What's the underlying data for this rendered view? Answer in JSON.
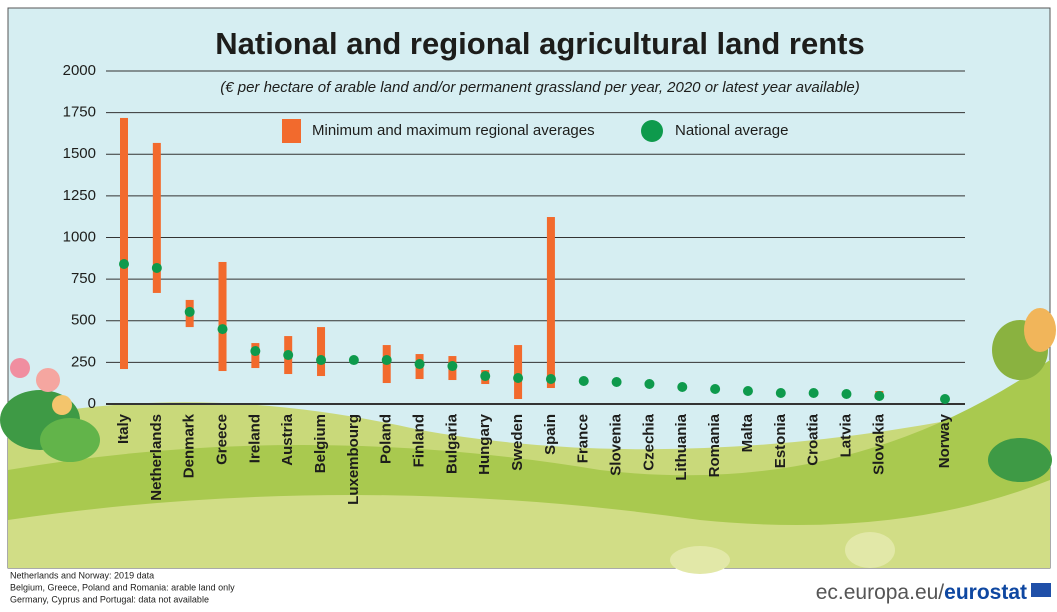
{
  "chart_data": {
    "type": "range",
    "title": "National and regional agricultural land rents",
    "subtitle": "(€ per hectare of arable land and/or permanent grassland per year, 2020 or latest year available)",
    "categories": [
      "Italy",
      "Netherlands",
      "Denmark",
      "Greece",
      "Ireland",
      "Austria",
      "Belgium",
      "Luxembourg",
      "Poland",
      "Finland",
      "Bulgaria",
      "Hungary",
      "Sweden",
      "Spain",
      "France",
      "Slovenia",
      "Czechia",
      "Lithuania",
      "Romania",
      "Malta",
      "Estonia",
      "Croatia",
      "Latvia",
      "Slovakia",
      null,
      "Norway"
    ],
    "series": [
      {
        "name": "Minimum and maximum regional averages",
        "color": "#f26a2d",
        "low": [
          210,
          667,
          462,
          198,
          216,
          180,
          168,
          null,
          126,
          150,
          144,
          120,
          30,
          96,
          null,
          null,
          null,
          null,
          null,
          null,
          null,
          null,
          null,
          30,
          null,
          null
        ],
        "high": [
          1718,
          1568,
          625,
          853,
          366,
          408,
          462,
          null,
          354,
          300,
          288,
          204,
          354,
          1123,
          null,
          null,
          null,
          null,
          null,
          null,
          null,
          null,
          null,
          78,
          null,
          null
        ]
      },
      {
        "name": "National average",
        "color": "#0e9a4c",
        "values": [
          841,
          817,
          553,
          450,
          318,
          294,
          264,
          264,
          264,
          240,
          228,
          168,
          156,
          150,
          138,
          132,
          120,
          102,
          90,
          78,
          66,
          66,
          60,
          48,
          null,
          30
        ]
      }
    ],
    "ylim": [
      0,
      2000
    ],
    "yticks": [
      0,
      250,
      500,
      750,
      1000,
      1250,
      1500,
      1750,
      2000
    ],
    "grid": true
  },
  "footer": {
    "notes": [
      "Netherlands and Norway: 2019 data",
      "Belgium, Greece, Poland and Romania: arable land only",
      "Germany, Cyprus and Portugal: data not available"
    ],
    "site": "ec.europa.eu/",
    "brand": "eurostat"
  }
}
